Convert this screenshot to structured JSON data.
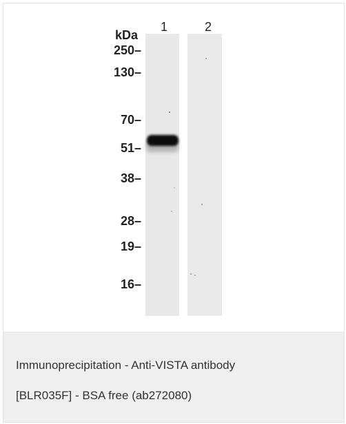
{
  "blot": {
    "unit_label": "kDa",
    "lanes": [
      "1",
      "2"
    ],
    "markers": [
      "250",
      "130",
      "70",
      "51",
      "38",
      "28",
      "19",
      "16"
    ]
  },
  "caption": {
    "line1": "Immunoprecipitation - Anti-VISTA antibody",
    "line2": "[BLR035F] - BSA free (ab272080)"
  },
  "colors": {
    "lane_background": "#e8e8e8",
    "band": "#0a0a0a",
    "caption_background": "#efefef"
  }
}
